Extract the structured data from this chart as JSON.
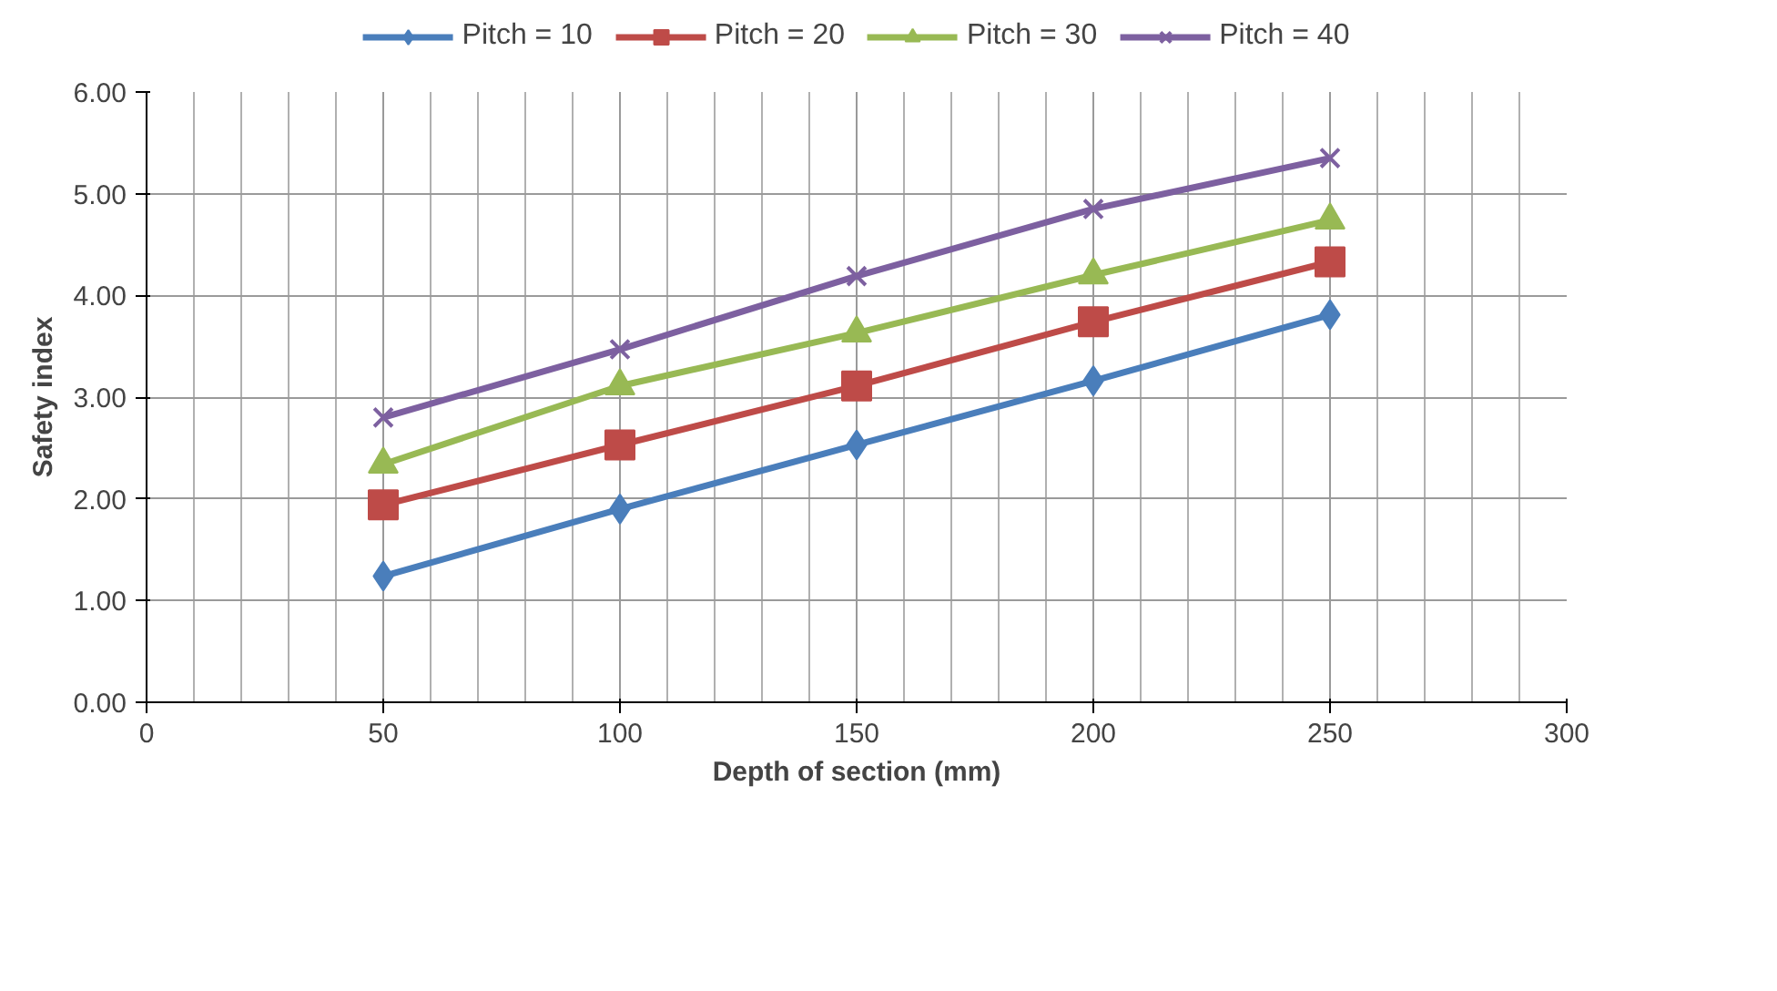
{
  "chart_data": {
    "type": "line",
    "xlabel": "Depth of section (mm)",
    "ylabel": "Safety index",
    "x": [
      50,
      100,
      150,
      200,
      250
    ],
    "series": [
      {
        "name": "Pitch = 10",
        "color": "#4a7ebb",
        "marker": "diamond",
        "values": [
          1.24,
          1.9,
          2.53,
          3.16,
          3.81
        ]
      },
      {
        "name": "Pitch = 20",
        "color": "#be4b48",
        "marker": "square",
        "values": [
          1.94,
          2.53,
          3.11,
          3.74,
          4.33
        ]
      },
      {
        "name": "Pitch = 30",
        "color": "#98b954",
        "marker": "triangle",
        "values": [
          2.34,
          3.11,
          3.63,
          4.2,
          4.74
        ]
      },
      {
        "name": "Pitch = 40",
        "color": "#7d60a0",
        "marker": "cross",
        "values": [
          2.8,
          3.47,
          4.19,
          4.85,
          5.35
        ]
      }
    ],
    "xlim": [
      0,
      300
    ],
    "xticks": [
      0,
      50,
      100,
      150,
      200,
      250,
      300
    ],
    "ylim": [
      0,
      6
    ],
    "yticks": [
      {
        "value": 0,
        "label": "0.00"
      },
      {
        "value": 1,
        "label": "1.00"
      },
      {
        "value": 2,
        "label": "2.00"
      },
      {
        "value": 3,
        "label": "3.00"
      },
      {
        "value": 4,
        "label": "4.00"
      },
      {
        "value": 5,
        "label": "5.00"
      },
      {
        "value": 6,
        "label": "6.00"
      }
    ],
    "grid": true,
    "legend": "top",
    "line_style": "solid"
  }
}
